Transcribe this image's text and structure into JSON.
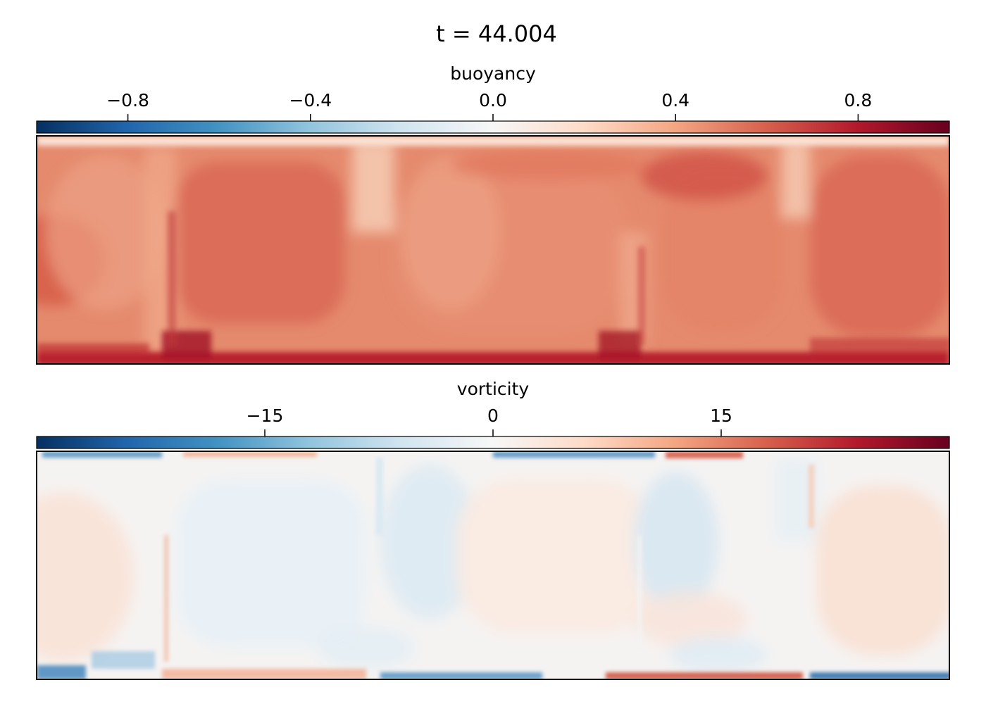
{
  "title": "t = 44.004",
  "colors": {
    "rdbu_stops": [
      "#053061",
      "#2166ac",
      "#4393c3",
      "#92c5de",
      "#d1e5f0",
      "#f7f7f7",
      "#fddbc7",
      "#f4a582",
      "#d6604d",
      "#b2182b",
      "#67001f"
    ]
  },
  "chart_data": [
    {
      "type": "heatmap",
      "colorbar_label": "buoyancy",
      "colorbar_orientation": "horizontal",
      "colorbar_position": "top",
      "colormap": "RdBu_r",
      "clim": [
        -1.0,
        1.0
      ],
      "ticks": [
        {
          "value": -0.8,
          "label": "−0.8"
        },
        {
          "value": -0.4,
          "label": "−0.4"
        },
        {
          "value": 0.0,
          "label": "0.0"
        },
        {
          "value": 0.4,
          "label": "0.4"
        },
        {
          "value": 0.8,
          "label": "0.8"
        }
      ],
      "axes_ticks": "hidden"
    },
    {
      "type": "heatmap",
      "colorbar_label": "vorticity",
      "colorbar_orientation": "horizontal",
      "colorbar_position": "top",
      "colormap": "RdBu_r",
      "clim": [
        -30,
        30
      ],
      "ticks": [
        {
          "value": -15,
          "label": "−15"
        },
        {
          "value": 0,
          "label": "0"
        },
        {
          "value": 15,
          "label": "15"
        }
      ],
      "axes_ticks": "hidden"
    }
  ]
}
